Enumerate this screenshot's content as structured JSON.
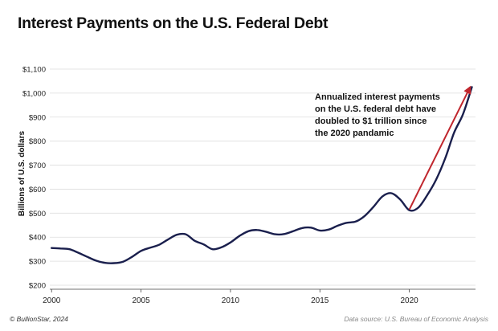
{
  "title": "Interest Payments on the U.S. Federal Debt",
  "footer": {
    "credit": "© BullionStar, 2024",
    "source": "Data source: U.S. Bureau of Economic Analysis"
  },
  "annotation": {
    "lines": [
      "Annualized interest payments",
      "on the U.S. federal debt have",
      "doubled to $1 trillion since",
      "the 2020 pandamic"
    ]
  },
  "colors": {
    "line": "#1a1f4d",
    "arrow": "#c0262d",
    "grid": "#dddddd"
  },
  "chart_data": {
    "type": "line",
    "title": "Interest Payments on the U.S. Federal Debt",
    "xlabel": "",
    "ylabel": "Billions of U.S. dollars",
    "xlim": [
      1999.9,
      2023.7
    ],
    "ylim": [
      200,
      1100
    ],
    "x_ticks": [
      2000,
      2005,
      2010,
      2015,
      2020
    ],
    "x_tick_labels": [
      "2000",
      "2005",
      "2010",
      "2015",
      "2020"
    ],
    "y_ticks": [
      200,
      300,
      400,
      500,
      600,
      700,
      800,
      900,
      1000,
      1100
    ],
    "y_tick_labels": [
      "$200",
      "$300",
      "$400",
      "$500",
      "$600",
      "$700",
      "$800",
      "$900",
      "$1,000",
      "$1,100"
    ],
    "grid": "horizontal",
    "series": [
      {
        "x": [
          2000.0,
          2000.5,
          2001.0,
          2001.5,
          2002.0,
          2002.5,
          2003.0,
          2003.5,
          2004.0,
          2004.5,
          2005.0,
          2005.5,
          2006.0,
          2006.5,
          2007.0,
          2007.5,
          2008.0,
          2008.5,
          2009.0,
          2009.5,
          2010.0,
          2010.5,
          2011.0,
          2011.5,
          2012.0,
          2012.5,
          2013.0,
          2013.5,
          2014.0,
          2014.5,
          2015.0,
          2015.5,
          2016.0,
          2016.5,
          2017.0,
          2017.5,
          2018.0,
          2018.5,
          2019.0,
          2019.5,
          2020.0,
          2020.5,
          2021.0,
          2021.5,
          2022.0,
          2022.5,
          2023.0,
          2023.5
        ],
        "values": [
          355,
          353,
          350,
          335,
          318,
          302,
          293,
          292,
          298,
          318,
          343,
          356,
          368,
          390,
          410,
          412,
          385,
          370,
          350,
          358,
          378,
          405,
          425,
          430,
          422,
          412,
          413,
          425,
          438,
          440,
          428,
          432,
          448,
          460,
          465,
          488,
          527,
          570,
          583,
          556,
          512,
          523,
          575,
          640,
          727,
          835,
          912,
          1025
        ]
      }
    ],
    "annotation_arrow": {
      "from": [
        2020.0,
        515
      ],
      "to": [
        2023.4,
        1025
      ]
    }
  }
}
